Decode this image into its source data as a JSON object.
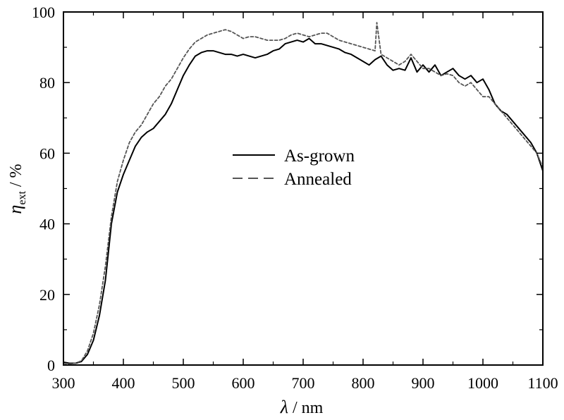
{
  "chart_data": {
    "type": "line",
    "title": "",
    "xlabel": {
      "symbol": "λ",
      "unit": "nm"
    },
    "ylabel": {
      "symbol": "η",
      "subscript": "ext",
      "unit": "%"
    },
    "xlim": [
      300,
      1100
    ],
    "ylim": [
      0,
      100
    ],
    "xticks": [
      300,
      400,
      500,
      600,
      700,
      800,
      900,
      1000,
      1100
    ],
    "yticks": [
      0,
      20,
      40,
      60,
      80,
      100
    ],
    "grid": false,
    "legend_position": "center",
    "series": [
      {
        "name": "As-grown",
        "style": "solid",
        "color": "#000000",
        "points": [
          [
            300,
            0.8
          ],
          [
            310,
            0.5
          ],
          [
            320,
            0.5
          ],
          [
            330,
            1
          ],
          [
            340,
            3
          ],
          [
            350,
            7
          ],
          [
            360,
            14
          ],
          [
            370,
            24
          ],
          [
            375,
            32
          ],
          [
            380,
            40
          ],
          [
            390,
            49
          ],
          [
            400,
            54
          ],
          [
            410,
            58
          ],
          [
            420,
            62
          ],
          [
            430,
            64.5
          ],
          [
            440,
            66
          ],
          [
            450,
            67
          ],
          [
            460,
            69
          ],
          [
            470,
            71
          ],
          [
            480,
            74
          ],
          [
            490,
            78
          ],
          [
            500,
            82
          ],
          [
            510,
            85
          ],
          [
            520,
            87.5
          ],
          [
            530,
            88.5
          ],
          [
            540,
            89
          ],
          [
            550,
            89
          ],
          [
            560,
            88.5
          ],
          [
            570,
            88
          ],
          [
            580,
            88
          ],
          [
            590,
            87.5
          ],
          [
            600,
            88
          ],
          [
            610,
            87.5
          ],
          [
            620,
            87
          ],
          [
            630,
            87.5
          ],
          [
            640,
            88
          ],
          [
            650,
            89
          ],
          [
            660,
            89.5
          ],
          [
            670,
            91
          ],
          [
            680,
            91.5
          ],
          [
            690,
            92
          ],
          [
            700,
            91.5
          ],
          [
            710,
            92.5
          ],
          [
            720,
            91
          ],
          [
            730,
            91
          ],
          [
            740,
            90.5
          ],
          [
            750,
            90
          ],
          [
            760,
            89.5
          ],
          [
            770,
            88.5
          ],
          [
            780,
            88
          ],
          [
            790,
            87
          ],
          [
            800,
            86
          ],
          [
            810,
            85
          ],
          [
            820,
            86.5
          ],
          [
            830,
            87.5
          ],
          [
            840,
            85
          ],
          [
            850,
            83.5
          ],
          [
            860,
            84
          ],
          [
            870,
            83.5
          ],
          [
            880,
            87
          ],
          [
            890,
            83
          ],
          [
            900,
            85
          ],
          [
            910,
            83
          ],
          [
            920,
            85
          ],
          [
            930,
            82
          ],
          [
            940,
            83
          ],
          [
            950,
            84
          ],
          [
            960,
            82
          ],
          [
            970,
            81
          ],
          [
            980,
            82
          ],
          [
            990,
            80
          ],
          [
            1000,
            81
          ],
          [
            1010,
            78
          ],
          [
            1020,
            74
          ],
          [
            1030,
            72
          ],
          [
            1040,
            71
          ],
          [
            1050,
            69
          ],
          [
            1060,
            67
          ],
          [
            1070,
            65
          ],
          [
            1080,
            63
          ],
          [
            1090,
            60
          ],
          [
            1100,
            55
          ]
        ]
      },
      {
        "name": "Annealed",
        "style": "dashed",
        "color": "#555555",
        "points": [
          [
            300,
            0.5
          ],
          [
            310,
            0.3
          ],
          [
            320,
            0.5
          ],
          [
            330,
            1.2
          ],
          [
            340,
            4
          ],
          [
            350,
            9
          ],
          [
            360,
            17
          ],
          [
            370,
            28
          ],
          [
            380,
            42
          ],
          [
            390,
            52
          ],
          [
            400,
            58
          ],
          [
            410,
            63
          ],
          [
            420,
            66
          ],
          [
            430,
            68
          ],
          [
            440,
            71
          ],
          [
            450,
            74
          ],
          [
            460,
            76
          ],
          [
            470,
            79
          ],
          [
            480,
            81
          ],
          [
            490,
            84
          ],
          [
            500,
            87
          ],
          [
            510,
            89.5
          ],
          [
            520,
            91.5
          ],
          [
            530,
            92.5
          ],
          [
            540,
            93.5
          ],
          [
            550,
            94
          ],
          [
            560,
            94.5
          ],
          [
            570,
            95
          ],
          [
            580,
            94.5
          ],
          [
            590,
            93.5
          ],
          [
            600,
            92.5
          ],
          [
            610,
            93
          ],
          [
            620,
            93
          ],
          [
            630,
            92.5
          ],
          [
            640,
            92
          ],
          [
            650,
            92
          ],
          [
            660,
            92
          ],
          [
            670,
            92.5
          ],
          [
            680,
            93.5
          ],
          [
            690,
            94
          ],
          [
            700,
            93.5
          ],
          [
            710,
            93
          ],
          [
            720,
            93.5
          ],
          [
            730,
            94
          ],
          [
            740,
            94
          ],
          [
            750,
            93
          ],
          [
            760,
            92
          ],
          [
            770,
            91.5
          ],
          [
            780,
            91
          ],
          [
            790,
            90.5
          ],
          [
            800,
            90
          ],
          [
            810,
            89.5
          ],
          [
            820,
            89
          ],
          [
            823,
            97
          ],
          [
            830,
            88
          ],
          [
            840,
            87
          ],
          [
            850,
            86
          ],
          [
            860,
            85
          ],
          [
            870,
            86
          ],
          [
            880,
            88
          ],
          [
            890,
            86
          ],
          [
            900,
            84
          ],
          [
            910,
            84
          ],
          [
            920,
            83
          ],
          [
            930,
            82
          ],
          [
            940,
            82.5
          ],
          [
            950,
            82
          ],
          [
            960,
            80
          ],
          [
            970,
            79
          ],
          [
            980,
            80
          ],
          [
            990,
            78
          ],
          [
            1000,
            76
          ],
          [
            1010,
            76
          ],
          [
            1020,
            74
          ],
          [
            1030,
            72
          ],
          [
            1040,
            70
          ],
          [
            1050,
            68
          ],
          [
            1060,
            66
          ],
          [
            1070,
            64
          ],
          [
            1080,
            62
          ],
          [
            1090,
            60
          ],
          [
            1100,
            56
          ]
        ]
      }
    ]
  }
}
